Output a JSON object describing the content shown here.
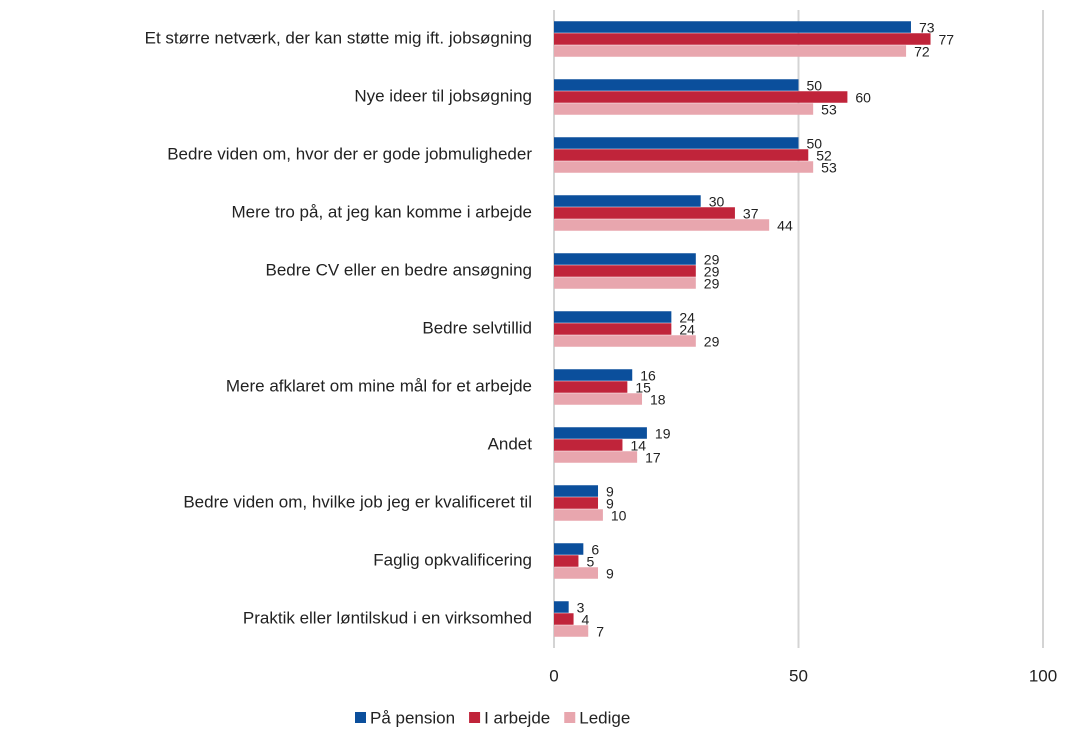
{
  "chart_data": {
    "type": "bar",
    "orientation": "horizontal",
    "categories": [
      "Et større netværk, der kan støtte mig ift. jobsøgning",
      "Nye ideer til jobsøgning",
      "Bedre viden om, hvor der er gode jobmuligheder",
      "Mere tro på, at jeg kan komme i arbejde",
      "Bedre CV eller en bedre ansøgning",
      "Bedre selvtillid",
      "Mere afklaret om mine mål for et arbejde",
      "Andet",
      "Bedre viden om, hvilke job jeg er kvalificeret til",
      "Faglig opkvalificering",
      "Praktik eller løntilskud i en virksomhed"
    ],
    "series": [
      {
        "name": "På pension",
        "color": "#0b4f9c",
        "values": [
          73,
          50,
          50,
          30,
          29,
          24,
          16,
          19,
          9,
          6,
          3
        ]
      },
      {
        "name": "I arbejde",
        "color": "#c0243a",
        "values": [
          77,
          60,
          52,
          37,
          29,
          24,
          15,
          14,
          9,
          5,
          4
        ]
      },
      {
        "name": "Ledige",
        "color": "#e8a6ae",
        "values": [
          72,
          53,
          53,
          44,
          29,
          29,
          18,
          17,
          10,
          9,
          7
        ]
      }
    ],
    "xlim": [
      0,
      100
    ],
    "xticks": [
      0,
      50,
      100
    ],
    "grid": true,
    "legend": "bottom"
  }
}
